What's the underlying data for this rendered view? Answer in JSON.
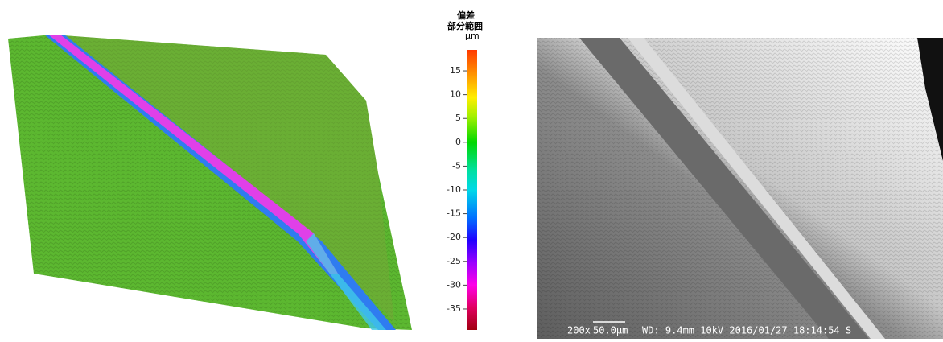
{
  "left_panel": {
    "colorbar": {
      "title": [
        "偏差",
        "部分範囲"
      ],
      "unit": "μm",
      "lim": [
        -39.4,
        19.4
      ],
      "ticks": [
        15,
        10,
        5,
        0,
        -5,
        -10,
        -15,
        -20,
        -25,
        -30,
        -35
      ]
    }
  },
  "right_panel": {
    "caption": {
      "magnification": "200x",
      "scale": "50.0μm",
      "details": "WD: 9.4mm  10kV 2016/01/27 18:14:54 S"
    }
  }
}
